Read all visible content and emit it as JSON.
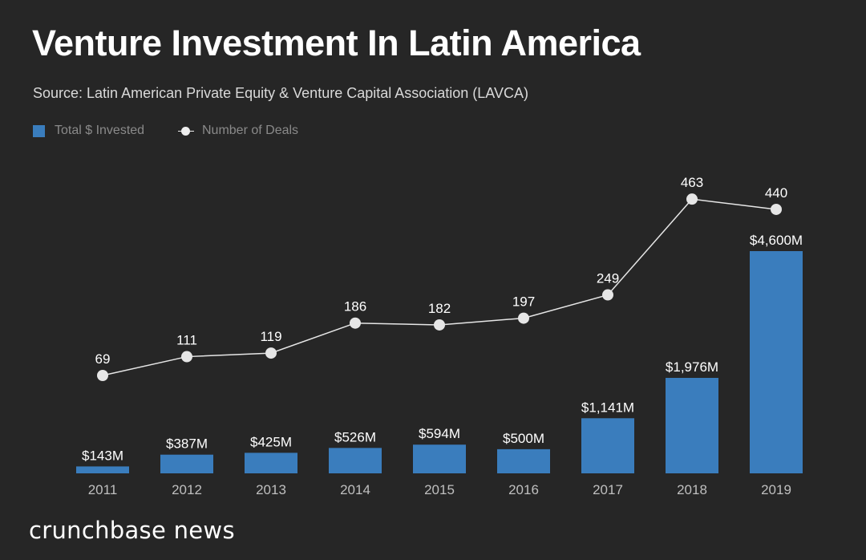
{
  "title": "Venture Investment In Latin America",
  "subtitle": "Source: Latin American Private Equity & Venture Capital Association (LAVCA)",
  "brand": "crunchbase news",
  "colors": {
    "background": "#262626",
    "bar": "#3a7dbd",
    "line": "#e6e6e6",
    "text": "#ffffff",
    "legend_text": "#8a8a8a",
    "tick_text": "#bfbfbf"
  },
  "chart_data": {
    "type": "bar+line",
    "categories": [
      "2011",
      "2012",
      "2013",
      "2014",
      "2015",
      "2016",
      "2017",
      "2018",
      "2019"
    ],
    "series": [
      {
        "name": "Total $ Invested",
        "type": "bar",
        "unit": "$M",
        "values": [
          143,
          387,
          425,
          526,
          594,
          500,
          1141,
          1976,
          4600
        ],
        "labels": [
          "$143M",
          "$387M",
          "$425M",
          "$526M",
          "$594M",
          "$500M",
          "$1,141M",
          "$1,976M",
          "$4,600M"
        ]
      },
      {
        "name": "Number of Deals",
        "type": "line",
        "values": [
          69,
          111,
          119,
          186,
          182,
          197,
          249,
          463,
          440
        ],
        "labels": [
          "69",
          "111",
          "119",
          "186",
          "182",
          "197",
          "249",
          "463",
          "440"
        ]
      }
    ],
    "legend": "top-left",
    "grid": false
  }
}
